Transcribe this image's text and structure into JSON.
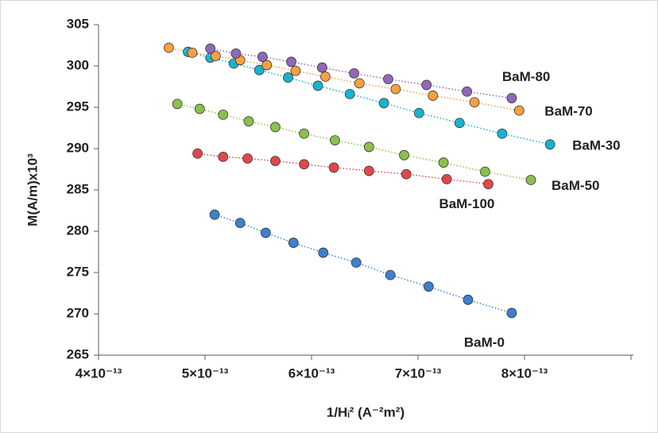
{
  "chart_data": {
    "type": "scatter",
    "x_label": "1/Hᵢ² (A⁻²m²)",
    "y_label": "M(A/m)x10³",
    "xlim": [
      4e-13,
      9e-13
    ],
    "xticks": [
      {
        "value": 4e-13,
        "label": "4×10⁻¹³"
      },
      {
        "value": 5e-13,
        "label": "5×10⁻¹³"
      },
      {
        "value": 6e-13,
        "label": "6×10⁻¹³"
      },
      {
        "value": 7e-13,
        "label": "7×10⁻¹³"
      },
      {
        "value": 8e-13,
        "label": "8×10⁻¹³"
      },
      {
        "value": 9e-13,
        "label": ""
      }
    ],
    "ylim": [
      265,
      305
    ],
    "yticks": [
      265,
      270,
      275,
      280,
      285,
      290,
      295,
      300,
      305
    ],
    "series": [
      {
        "name": "BaM-0",
        "color": "#3f7fcc",
        "x": [
          5.09e-13,
          5.33e-13,
          5.57e-13,
          5.83e-13,
          6.11e-13,
          6.42e-13,
          6.74e-13,
          7.1e-13,
          7.47e-13,
          7.88e-13
        ],
        "values": [
          282.0,
          281.0,
          279.8,
          278.6,
          277.4,
          276.2,
          274.7,
          273.3,
          271.7,
          270.1
        ]
      },
      {
        "name": "BaM-100",
        "color": "#e04848",
        "x": [
          4.93e-13,
          5.17e-13,
          5.4e-13,
          5.66e-13,
          5.93e-13,
          6.21e-13,
          6.54e-13,
          6.89e-13,
          7.27e-13,
          7.66e-13
        ],
        "values": [
          289.4,
          289.0,
          288.8,
          288.5,
          288.1,
          287.7,
          287.3,
          286.9,
          286.3,
          285.7
        ]
      },
      {
        "name": "BaM-50",
        "color": "#8cc04b",
        "x": [
          4.74e-13,
          4.95e-13,
          5.17e-13,
          5.41e-13,
          5.66e-13,
          5.93e-13,
          6.22e-13,
          6.54e-13,
          6.87e-13,
          7.24e-13,
          7.63e-13,
          8.06e-13
        ],
        "values": [
          295.4,
          294.8,
          294.1,
          293.3,
          292.6,
          291.8,
          291.0,
          290.2,
          289.2,
          288.3,
          287.2,
          286.2
        ]
      },
      {
        "name": "BaM-30",
        "color": "#19b3d2",
        "x": [
          4.84e-13,
          5.05e-13,
          5.27e-13,
          5.51e-13,
          5.78e-13,
          6.06e-13,
          6.36e-13,
          6.68e-13,
          7.01e-13,
          7.39e-13,
          7.79e-13,
          8.24e-13
        ],
        "values": [
          301.7,
          301.0,
          300.3,
          299.5,
          298.6,
          297.6,
          296.6,
          295.5,
          294.3,
          293.1,
          291.8,
          290.5
        ]
      },
      {
        "name": "BaM-70",
        "color": "#f7a040",
        "x": [
          4.66e-13,
          4.88e-13,
          5.1e-13,
          5.33e-13,
          5.58e-13,
          5.85e-13,
          6.13e-13,
          6.45e-13,
          6.79e-13,
          7.14e-13,
          7.53e-13,
          7.95e-13
        ],
        "values": [
          302.2,
          301.6,
          301.2,
          300.7,
          300.1,
          299.4,
          298.7,
          297.9,
          297.2,
          296.4,
          295.6,
          294.6
        ]
      },
      {
        "name": "BaM-80",
        "color": "#9068b8",
        "x": [
          5.05e-13,
          5.29e-13,
          5.54e-13,
          5.81e-13,
          6.1e-13,
          6.4e-13,
          6.72e-13,
          7.08e-13,
          7.46e-13,
          7.88e-13
        ],
        "values": [
          302.1,
          301.5,
          301.1,
          300.5,
          299.8,
          299.1,
          298.4,
          297.7,
          296.9,
          296.1
        ]
      }
    ]
  }
}
